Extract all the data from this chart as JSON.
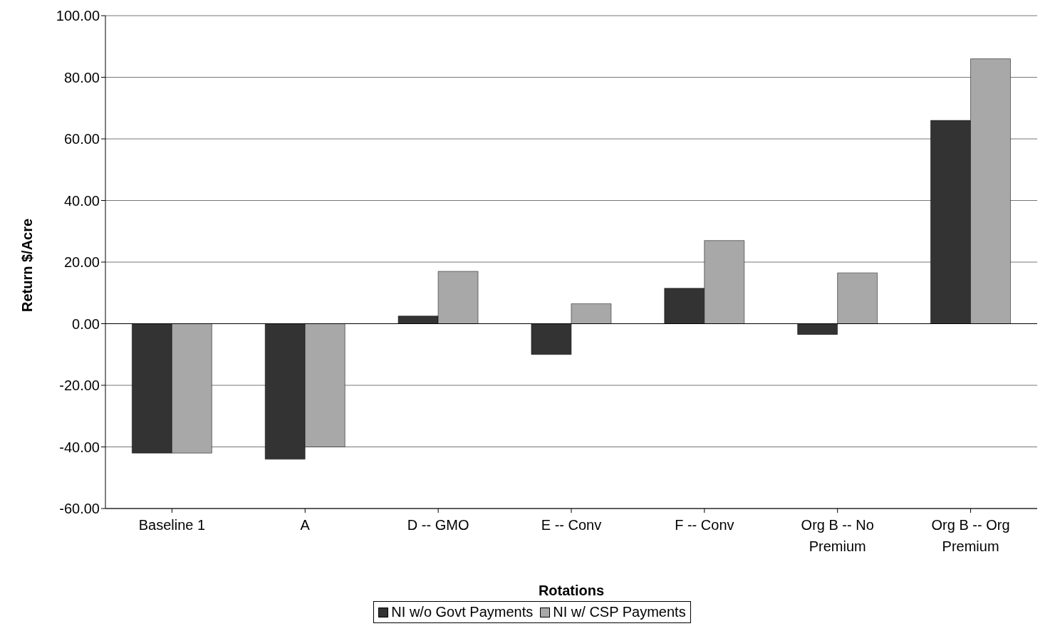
{
  "chart_data": {
    "type": "bar",
    "xlabel": "Rotations",
    "ylabel": "Return $/Acre",
    "categories": [
      "Baseline 1",
      "A",
      "D -- GMO",
      "E -- Conv",
      "F -- Conv",
      "Org B -- No Premium",
      "Org B -- Org Premium"
    ],
    "series": [
      {
        "name": "NI w/o Govt Payments",
        "color": "#333333",
        "values": [
          -42,
          -44,
          2.5,
          -10,
          11.5,
          -3.5,
          66
        ]
      },
      {
        "name": "NI w/ CSP Payments",
        "color": "#a8a8a8",
        "values": [
          -42,
          -40,
          17,
          6.5,
          27,
          16.5,
          86
        ]
      }
    ],
    "ylim": [
      -60,
      100
    ],
    "yticks": [
      {
        "value": -60,
        "label": "-60.00"
      },
      {
        "value": -40,
        "label": "-40.00"
      },
      {
        "value": -20,
        "label": "-20.00"
      },
      {
        "value": 0,
        "label": "0.00"
      },
      {
        "value": 20,
        "label": "20.00"
      },
      {
        "value": 40,
        "label": "40.00"
      },
      {
        "value": 60,
        "label": "60.00"
      },
      {
        "value": 80,
        "label": "80.00"
      },
      {
        "value": 100,
        "label": "100.00"
      }
    ],
    "grid": "y",
    "legend": "bottom"
  }
}
